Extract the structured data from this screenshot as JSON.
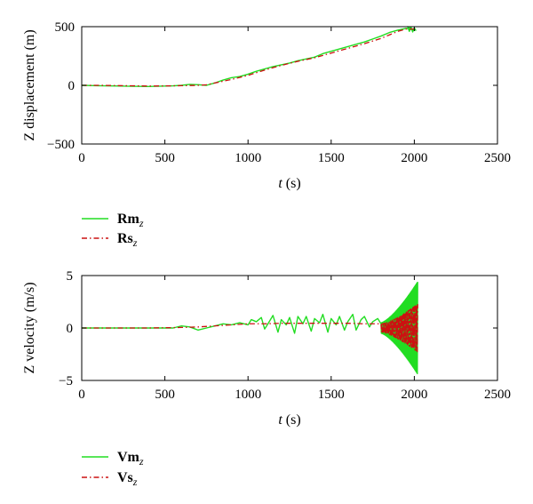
{
  "chart_data": [
    {
      "type": "line",
      "ylabel": "Z displacement (m)",
      "xlabel_var": "t",
      "xlabel_unit": "(s)",
      "xlim": [
        0,
        2500
      ],
      "ylim": [
        -500,
        500
      ],
      "xticks": [
        "0",
        "500",
        "1000",
        "1500",
        "2000",
        "2500"
      ],
      "yticks": [
        "500",
        "0",
        "−500"
      ],
      "legend_placement": "below-left",
      "series": [
        {
          "name": "Rm",
          "name_sub": "z",
          "color": "#22dd22",
          "style": "solid",
          "x": [
            0,
            100,
            200,
            300,
            400,
            500,
            550,
            600,
            650,
            700,
            750,
            800,
            850,
            900,
            950,
            1000,
            1050,
            1100,
            1150,
            1200,
            1250,
            1300,
            1350,
            1400,
            1450,
            1500,
            1550,
            1600,
            1650,
            1700,
            1750,
            1800,
            1850,
            1900,
            1950,
            2000
          ],
          "y": [
            0,
            -3,
            -5,
            -8,
            -10,
            -6,
            -4,
            0,
            8,
            5,
            0,
            20,
            45,
            65,
            75,
            95,
            120,
            140,
            160,
            175,
            190,
            210,
            225,
            240,
            270,
            290,
            310,
            330,
            350,
            370,
            395,
            420,
            450,
            470,
            485,
            470
          ]
        },
        {
          "name": "Rs",
          "name_sub": "z",
          "color": "#cc1111",
          "style": "dashdot",
          "x": [
            0,
            100,
            200,
            300,
            400,
            500,
            600,
            700,
            750,
            800,
            900,
            1000,
            1100,
            1200,
            1300,
            1400,
            1500,
            1600,
            1700,
            1800,
            1850,
            1900,
            1950,
            2000
          ],
          "y": [
            0,
            0,
            -2,
            -4,
            -6,
            -5,
            -3,
            0,
            5,
            20,
            50,
            85,
            130,
            170,
            205,
            235,
            275,
            315,
            355,
            400,
            430,
            460,
            480,
            480
          ]
        }
      ]
    },
    {
      "type": "line",
      "ylabel": "Z velocity (m/s)",
      "xlabel_var": "t",
      "xlabel_unit": "(s)",
      "xlim": [
        0,
        2500
      ],
      "ylim": [
        -5,
        5
      ],
      "xticks": [
        "0",
        "500",
        "1000",
        "1500",
        "2000",
        "2500"
      ],
      "yticks": [
        "5",
        "0",
        "−5"
      ],
      "legend_placement": "below-left",
      "series": [
        {
          "name": "Vm",
          "name_sub": "z",
          "color": "#22dd22",
          "style": "solid",
          "x": [
            0,
            200,
            400,
            550,
            600,
            650,
            700,
            750,
            800,
            850,
            900,
            950,
            1000,
            1020,
            1050,
            1080,
            1100,
            1120,
            1150,
            1180,
            1200,
            1230,
            1250,
            1280,
            1300,
            1330,
            1350,
            1380,
            1400,
            1430,
            1450,
            1480,
            1500,
            1530,
            1550,
            1580,
            1600,
            1630,
            1650,
            1680,
            1700,
            1730,
            1750,
            1780,
            1800
          ],
          "y": [
            0,
            0,
            0,
            0,
            0.2,
            0.1,
            -0.2,
            0,
            0.2,
            0.4,
            0.3,
            0.5,
            0.3,
            0.8,
            0.6,
            1.0,
            -0.1,
            0.4,
            1.2,
            -0.4,
            0.8,
            0.3,
            1.0,
            -0.5,
            1.1,
            0.4,
            1.1,
            -0.3,
            0.9,
            0.5,
            1.3,
            -0.4,
            0.9,
            0.3,
            1.1,
            -0.2,
            0.6,
            1.3,
            -0.2,
            0.8,
            1.1,
            0.1,
            0.6,
            0.9,
            0.4
          ]
        },
        {
          "name": "Vs",
          "name_sub": "z",
          "color": "#cc1111",
          "style": "dashdot",
          "x": [
            0,
            200,
            400,
            600,
            700,
            800,
            900,
            1000,
            1100,
            1200,
            1300,
            1400,
            1500,
            1600,
            1700,
            1800
          ],
          "y": [
            0,
            0,
            0,
            0.05,
            0.1,
            0.2,
            0.3,
            0.4,
            0.4,
            0.45,
            0.45,
            0.45,
            0.45,
            0.45,
            0.4,
            0.4
          ]
        }
      ],
      "oscillation": {
        "x_start": 1800,
        "x_end": 2020,
        "center": 0,
        "measured_amp_start": 0.5,
        "measured_amp_end": 4.4,
        "simulated_amp_start": 0.4,
        "simulated_amp_end": 2.4
      }
    }
  ]
}
